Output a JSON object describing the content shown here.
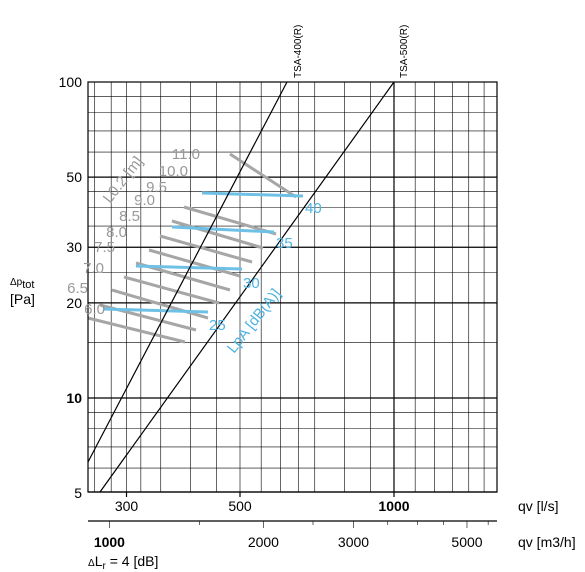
{
  "chart_data": {
    "type": "line",
    "title": "",
    "y_axis": {
      "label_symbol": "Δp",
      "label_sub": "tot",
      "unit": "[Pa]",
      "scale": "log",
      "range": [
        5,
        100
      ],
      "ticks": [
        5,
        10,
        20,
        30,
        50,
        100
      ],
      "tick_labels": [
        "5",
        "10",
        "20",
        "30",
        "50",
        "100"
      ]
    },
    "x_axis_ls": {
      "label": "qv [l/s]",
      "scale": "log",
      "ticks": [
        300,
        500,
        1000
      ],
      "tick_labels": [
        "300",
        "500",
        "1000"
      ],
      "bold_tick": "1000"
    },
    "x_axis_m3h": {
      "label": "qv [m3/h]",
      "scale": "log",
      "ticks": [
        1000,
        2000,
        3000,
        5000
      ],
      "tick_labels": [
        "1000",
        "2000",
        "3000",
        "5000"
      ],
      "bold_tick": "1000"
    },
    "footnote": {
      "symbol": "Δ",
      "text_main": "L",
      "text_sub": "r",
      "text_tail": " = 4 [dB]"
    },
    "grid": true,
    "series": [
      {
        "name": "TSA-400(R)",
        "x": [
          235,
          695
        ],
        "y": [
          6.3,
          100
        ]
      },
      {
        "name": "TSA-500(R)",
        "x": [
          430,
          1000
        ],
        "y": [
          10,
          100
        ]
      }
    ],
    "throw_length": {
      "label": "L0.2 [m]",
      "values": [
        "6.0",
        "6.5",
        "7.0",
        "7.5",
        "8.0",
        "8.5",
        "9.0",
        "9.5",
        "10.0",
        "11.0"
      ],
      "color": "#a6a6a6"
    },
    "sound_level": {
      "label": "LpA [dB(A)]",
      "values": [
        "25",
        "30",
        "35",
        "40"
      ],
      "color": "#6ec1e4"
    }
  }
}
